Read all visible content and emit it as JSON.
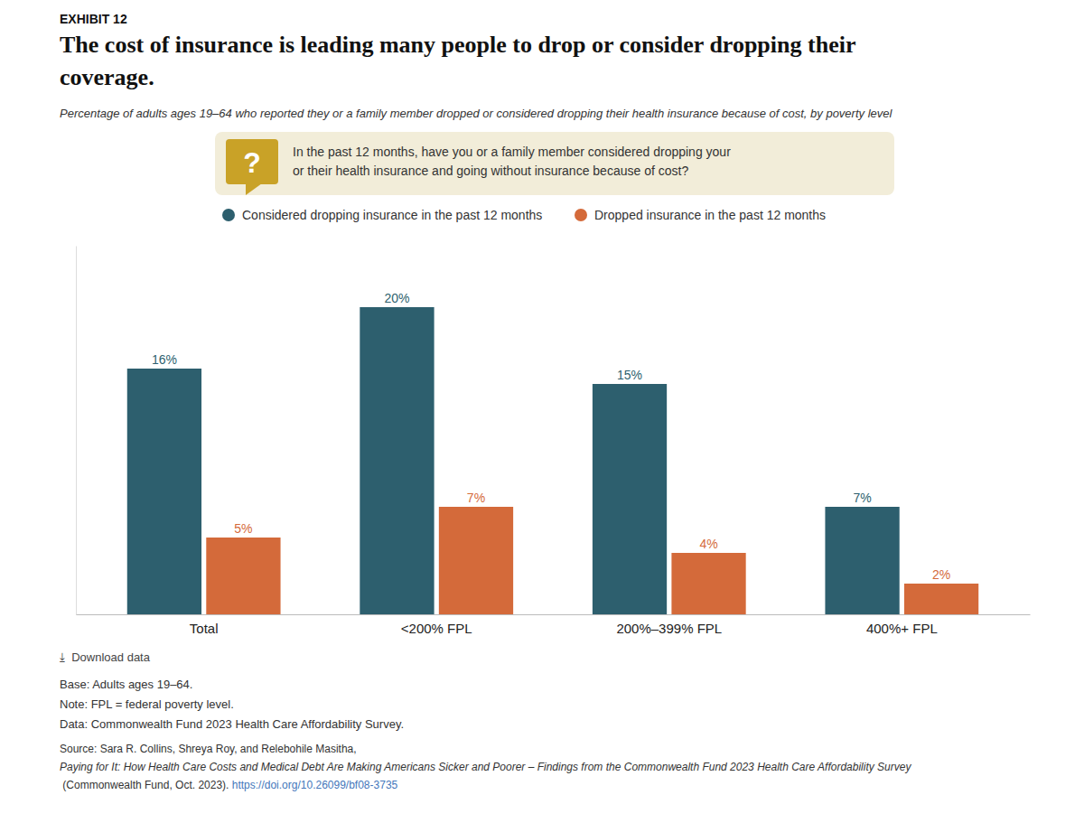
{
  "chart_data": {
    "type": "bar",
    "title": [
      "The cost of insurance is leading many people to drop or consider dropping their",
      "coverage."
    ],
    "subtitle": "Percentage of adults ages 19–64 who reported they or a family member dropped or considered dropping their health insurance because of cost, by poverty level",
    "annotations": [
      "EXHIBIT 12",
      "In the past 12 months, have you or a family member considered dropping your",
      "or their health insurance and going without insurance because of cost?",
      "?",
      "⤓  Download data",
      "Base: Adults ages 19–64.",
      "Note: FPL = federal poverty level.",
      "Data: Commonwealth Fund 2023 Health Care Affordability Survey.",
      "Source: Sara R. Collins, Shreya Roy, and Relebohile Masitha, ",
      "Paying for It: How Health Care Costs and Medical Debt Are Making Americans Sicker and Poorer – Findings from the Commonwealth Fund 2023 Health Care Affordability Survey",
      " (Commonwealth Fund, Oct. 2023). ",
      "https://doi.org/10.26099/bf08-3735"
    ],
    "categories": [
      "Total",
      "<200% FPL",
      "200%–399% FPL",
      "400%+ FPL"
    ],
    "series": [
      {
        "name": "Considered dropping insurance in the past 12 months",
        "color": "#2d5f6e",
        "values": [
          16,
          20,
          15,
          7
        ],
        "value_labels": [
          "16%",
          "20%",
          "15%",
          "7%"
        ]
      },
      {
        "name": "Dropped insurance in the past 12 months",
        "color": "#d46a3a",
        "values": [
          5,
          7,
          4,
          2
        ],
        "value_labels": [
          "5%",
          "7%",
          "4%",
          "2%"
        ]
      }
    ],
    "ylim": [
      0,
      24
    ],
    "grid": false,
    "legend": "top",
    "data_labels": true,
    "tick_labels": "x"
  }
}
